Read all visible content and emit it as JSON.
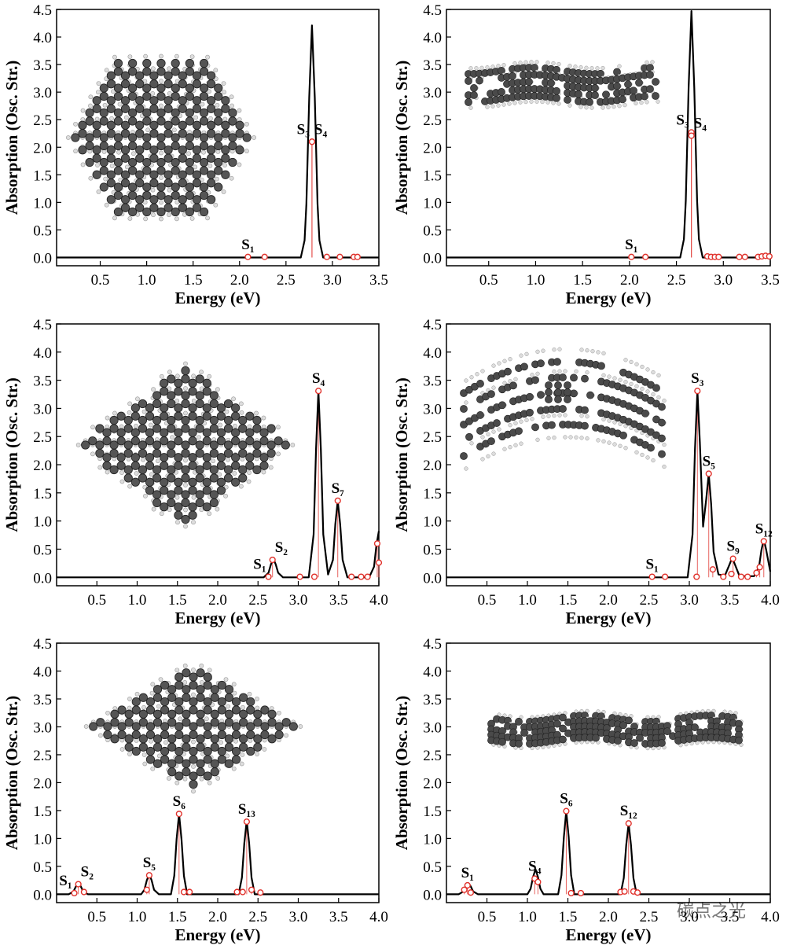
{
  "chart_data": [
    {
      "type": "line",
      "x_label": "Energy (eV)",
      "y_label": "Absorption (Osc. Str.)",
      "xlim": [
        0.03,
        3.5
      ],
      "xticks": [
        0.5,
        {
          "value": 1,
          "label": "1.0"
        },
        1.5,
        {
          "value": 2,
          "label": "2.0"
        },
        2.5,
        {
          "value": 3,
          "label": "3.0"
        },
        3.5
      ],
      "ylim": [
        -0.15,
        4.5
      ],
      "yticks": [
        {
          "value": 0,
          "label": "0.0"
        },
        0.5,
        {
          "value": 1,
          "label": "1.0"
        },
        1.5,
        {
          "value": 2,
          "label": "2.0"
        },
        2.5,
        {
          "value": 3,
          "label": "3.0"
        },
        3.5,
        {
          "value": 4,
          "label": "4.0"
        },
        4.5
      ],
      "spectrum": {
        "color": "#000000",
        "x": [
          0.03,
          2.66,
          2.7,
          2.72,
          2.75,
          2.78,
          2.81,
          2.84,
          2.86,
          2.9,
          3.5
        ],
        "values": [
          0,
          0,
          0.31,
          0.97,
          2.9,
          4.21,
          2.9,
          0.97,
          0.31,
          0,
          0
        ]
      },
      "transitions": {
        "color": "#e0302a",
        "x": [
          2.09,
          2.27,
          2.78,
          2.78,
          2.94,
          3.08,
          3.23,
          3.27
        ],
        "values": [
          0.01,
          0.01,
          2.1,
          2.1,
          0.01,
          0.01,
          0.01,
          0.01
        ],
        "labels": [
          "S₁",
          null,
          "S₃",
          "S₄",
          null,
          null,
          null,
          null
        ]
      }
    },
    {
      "type": "line",
      "x_label": "Energy (eV)",
      "y_label": "Absorption (Osc. Str.)",
      "xlim": [
        0.05,
        3.5
      ],
      "xticks": [
        0.5,
        {
          "value": 1,
          "label": "1.0"
        },
        1.5,
        {
          "value": 2,
          "label": "2.0"
        },
        2.5,
        {
          "value": 3,
          "label": "3.0"
        },
        3.5
      ],
      "ylim": [
        -0.15,
        4.5
      ],
      "yticks": [
        {
          "value": 0,
          "label": "0.0"
        },
        0.5,
        {
          "value": 1,
          "label": "1.0"
        },
        1.5,
        {
          "value": 2,
          "label": "2.0"
        },
        2.5,
        {
          "value": 3,
          "label": "3.0"
        },
        3.5,
        {
          "value": 4,
          "label": "4.0"
        },
        4.5
      ],
      "spectrum": {
        "color": "#000000",
        "x": [
          0.05,
          2.54,
          2.58,
          2.6,
          2.63,
          2.66,
          2.69,
          2.72,
          2.74,
          2.78,
          3.5
        ],
        "values": [
          0,
          0,
          0.33,
          1.03,
          3.08,
          4.47,
          3.08,
          1.03,
          0.33,
          0,
          0
        ]
      },
      "transitions": {
        "color": "#e0302a",
        "x": [
          2.02,
          2.17,
          2.66,
          2.66,
          2.83,
          2.87,
          2.91,
          2.95,
          3.17,
          3.23,
          3.37,
          3.41,
          3.45,
          3.49
        ],
        "values": [
          0.01,
          0.01,
          2.27,
          2.21,
          0.02,
          0.01,
          0.01,
          0.01,
          0.01,
          0.01,
          0.01,
          0.02,
          0.03,
          0.02
        ],
        "labels": [
          "S₁",
          null,
          "S₃",
          "S₄",
          null,
          null,
          null,
          null,
          null,
          null,
          null,
          null,
          null,
          null
        ]
      }
    },
    {
      "type": "line",
      "x_label": "Energy (eV)",
      "y_label": "Absorption (Osc. Str.)",
      "xlim": [
        0,
        4
      ],
      "xticks": [
        0.5,
        {
          "value": 1,
          "label": "1.0"
        },
        1.5,
        {
          "value": 2,
          "label": "2.0"
        },
        2.5,
        {
          "value": 3,
          "label": "3.0"
        },
        3.5,
        {
          "value": 4,
          "label": "4.0"
        }
      ],
      "ylim": [
        -0.15,
        4.5
      ],
      "yticks": [
        {
          "value": 0,
          "label": "0.0"
        },
        0.5,
        {
          "value": 1,
          "label": "1.0"
        },
        1.5,
        {
          "value": 2,
          "label": "2.0"
        },
        2.5,
        {
          "value": 3,
          "label": "3.0"
        },
        3.5,
        {
          "value": 4,
          "label": "4.0"
        },
        4.5
      ],
      "spectrum": {
        "color": "#000000",
        "x": [
          0,
          2.57,
          2.63,
          2.66,
          2.69,
          2.72,
          2.75,
          2.81,
          3.13,
          3.19,
          3.22,
          3.25,
          3.28,
          3.31,
          3.37,
          3.43,
          3.46,
          3.49,
          3.52,
          3.55,
          3.61,
          3.88,
          3.94,
          3.97,
          4.0
        ],
        "values": [
          0,
          0,
          0.08,
          0.23,
          0.33,
          0.23,
          0.08,
          0,
          0,
          0.76,
          2.28,
          3.31,
          2.28,
          0.76,
          0.05,
          0.31,
          0.94,
          1.36,
          0.94,
          0.31,
          0,
          0,
          0.19,
          0.57,
          0.82
        ]
      },
      "transitions": {
        "color": "#e0302a",
        "x": [
          2.63,
          2.68,
          3.02,
          3.2,
          3.25,
          3.49,
          3.66,
          3.78,
          3.86,
          3.98,
          4.0
        ],
        "values": [
          0.01,
          0.31,
          0.01,
          0.01,
          3.31,
          1.36,
          0.01,
          0.01,
          0.01,
          0.6,
          0.26
        ],
        "labels": [
          "S₁",
          "S₂",
          null,
          null,
          "S₄",
          "S₇",
          null,
          null,
          null,
          null,
          null
        ]
      }
    },
    {
      "type": "line",
      "x_label": "Energy (eV)",
      "y_label": "Absorption (Osc. Str.)",
      "xlim": [
        0,
        4
      ],
      "xticks": [
        0.5,
        {
          "value": 1,
          "label": "1.0"
        },
        1.5,
        {
          "value": 2,
          "label": "2.0"
        },
        2.5,
        {
          "value": 3,
          "label": "3.0"
        },
        3.5,
        {
          "value": 4,
          "label": "4.0"
        }
      ],
      "ylim": [
        -0.15,
        4.5
      ],
      "yticks": [
        {
          "value": 0,
          "label": "0.0"
        },
        0.5,
        {
          "value": 1,
          "label": "1.0"
        },
        1.5,
        {
          "value": 2,
          "label": "2.0"
        },
        2.5,
        {
          "value": 3,
          "label": "3.0"
        },
        3.5,
        {
          "value": 4,
          "label": "4.0"
        },
        4.5
      ],
      "spectrum": {
        "color": "#000000",
        "x": [
          0,
          2.98,
          3.04,
          3.07,
          3.1,
          3.13,
          3.17,
          3.21,
          3.24,
          3.27,
          3.3,
          3.36,
          3.44,
          3.5,
          3.53,
          3.56,
          3.62,
          3.8,
          3.86,
          3.89,
          3.92,
          3.95,
          4.0
        ],
        "values": [
          0,
          0,
          0.76,
          2.28,
          3.31,
          2.4,
          0.9,
          1.4,
          1.84,
          1.3,
          0.45,
          0.05,
          0.03,
          0.24,
          0.35,
          0.24,
          0.02,
          0.02,
          0.18,
          0.48,
          0.68,
          0.48,
          0.1
        ]
      },
      "transitions": {
        "color": "#e0302a",
        "x": [
          2.54,
          2.7,
          3.09,
          3.1,
          3.24,
          3.29,
          3.42,
          3.52,
          3.54,
          3.64,
          3.72,
          3.83,
          3.87,
          3.92
        ],
        "values": [
          0.01,
          0.01,
          0.01,
          3.31,
          1.84,
          0.14,
          0.01,
          0.06,
          0.33,
          0.01,
          0.01,
          0.08,
          0.18,
          0.64
        ],
        "labels": [
          "S₁",
          null,
          null,
          "S₃",
          "S₅",
          null,
          null,
          null,
          "S₉",
          null,
          null,
          null,
          null,
          "S₁₂"
        ]
      }
    },
    {
      "type": "line",
      "x_label": "Energy (eV)",
      "y_label": "Absorption (Osc. Str.)",
      "xlim": [
        0,
        4
      ],
      "xticks": [
        0.5,
        {
          "value": 1,
          "label": "1.0"
        },
        1.5,
        {
          "value": 2,
          "label": "2.0"
        },
        2.5,
        {
          "value": 3,
          "label": "3.0"
        },
        3.5,
        {
          "value": 4,
          "label": "4.0"
        }
      ],
      "ylim": [
        -0.15,
        4.5
      ],
      "yticks": [
        {
          "value": 0,
          "label": "0.0"
        },
        0.5,
        {
          "value": 1,
          "label": "1.0"
        },
        1.5,
        {
          "value": 2,
          "label": "2.0"
        },
        2.5,
        {
          "value": 3,
          "label": "3.0"
        },
        3.5,
        {
          "value": 4,
          "label": "4.0"
        },
        4.5
      ],
      "spectrum": {
        "color": "#000000",
        "x": [
          0,
          0.15,
          0.21,
          0.24,
          0.27,
          0.3,
          0.33,
          0.39,
          1.05,
          1.09,
          1.12,
          1.15,
          1.18,
          1.21,
          1.27,
          1.42,
          1.46,
          1.49,
          1.52,
          1.55,
          1.58,
          1.62,
          2.26,
          2.3,
          2.33,
          2.36,
          2.39,
          2.42,
          2.46,
          4.0
        ],
        "values": [
          0,
          0,
          0.05,
          0.14,
          0.2,
          0.14,
          0.05,
          0,
          0,
          0.08,
          0.25,
          0.36,
          0.25,
          0.08,
          0,
          0,
          0.33,
          0.99,
          1.44,
          0.99,
          0.33,
          0,
          0,
          0.3,
          0.91,
          1.32,
          0.91,
          0.3,
          0,
          0
        ]
      },
      "transitions": {
        "color": "#e0302a",
        "x": [
          0.22,
          0.27,
          0.34,
          1.12,
          1.15,
          1.52,
          1.58,
          1.65,
          2.24,
          2.31,
          2.36,
          2.42,
          2.53
        ],
        "values": [
          0.02,
          0.18,
          0.04,
          0.08,
          0.34,
          1.44,
          0.04,
          0.04,
          0.04,
          0.04,
          1.3,
          0.08,
          0.03
        ],
        "labels": [
          "S₁",
          "S₂",
          null,
          null,
          "S₅",
          "S₆",
          null,
          null,
          null,
          null,
          "S₁₃",
          null,
          null
        ]
      }
    },
    {
      "type": "line",
      "x_label": "Energy (eV)",
      "y_label": "Absorption (Osc. Str.)",
      "xlim": [
        0,
        4
      ],
      "xticks": [
        0.5,
        {
          "value": 1,
          "label": "1.0"
        },
        1.5,
        {
          "value": 2,
          "label": "2.0"
        },
        2.5,
        {
          "value": 3,
          "label": "3.0"
        },
        3.5,
        {
          "value": 4,
          "label": "4.0"
        }
      ],
      "ylim": [
        -0.15,
        4.5
      ],
      "yticks": [
        {
          "value": 0,
          "label": "0.0"
        },
        0.5,
        {
          "value": 1,
          "label": "1.0"
        },
        1.5,
        {
          "value": 2,
          "label": "2.0"
        },
        2.5,
        {
          "value": 3,
          "label": "3.0"
        },
        3.5,
        {
          "value": 4,
          "label": "4.0"
        },
        4.5
      ],
      "spectrum": {
        "color": "#000000",
        "x": [
          0,
          0.15,
          0.21,
          0.24,
          0.27,
          0.3,
          0.33,
          0.39,
          1.0,
          1.04,
          1.07,
          1.1,
          1.13,
          1.16,
          1.2,
          1.38,
          1.42,
          1.45,
          1.48,
          1.51,
          1.54,
          1.58,
          2.15,
          2.19,
          2.22,
          2.25,
          2.28,
          2.31,
          2.35,
          4.0
        ],
        "values": [
          0,
          0,
          0.05,
          0.14,
          0.2,
          0.14,
          0.05,
          0,
          0,
          0.1,
          0.31,
          0.45,
          0.31,
          0.1,
          0,
          0,
          0.34,
          1.03,
          1.49,
          1.03,
          0.34,
          0,
          0,
          0.29,
          0.88,
          1.27,
          0.88,
          0.29,
          0,
          0
        ]
      },
      "transitions": {
        "color": "#e0302a",
        "x": [
          0.22,
          0.26,
          0.3,
          1.09,
          1.13,
          1.48,
          1.54,
          1.66,
          2.15,
          2.2,
          2.25,
          2.31,
          2.36
        ],
        "values": [
          0.08,
          0.16,
          0.03,
          0.28,
          0.22,
          1.49,
          0.02,
          0.02,
          0.04,
          0.05,
          1.27,
          0.05,
          0.03
        ],
        "labels": [
          null,
          "S₁",
          null,
          "S₄",
          null,
          "S₆",
          null,
          null,
          null,
          null,
          "S₁₂",
          null,
          null
        ]
      }
    }
  ],
  "watermark": "碳点之光"
}
